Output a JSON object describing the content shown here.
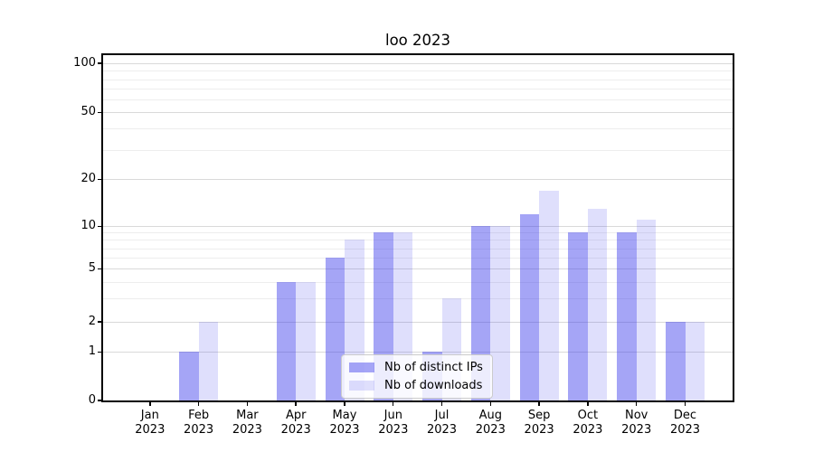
{
  "chart_data": {
    "type": "bar",
    "title": "loo 2023",
    "categories": [
      "Jan 2023",
      "Feb 2023",
      "Mar 2023",
      "Apr 2023",
      "May 2023",
      "Jun 2023",
      "Jul 2023",
      "Aug 2023",
      "Sep 2023",
      "Oct 2023",
      "Nov 2023",
      "Dec 2023"
    ],
    "series": [
      {
        "name": "Nb of distinct IPs",
        "values": [
          0,
          1,
          0,
          4,
          6,
          9,
          1,
          10,
          12,
          9,
          9,
          2
        ],
        "color": "rgba(55,55,235,0.45)",
        "approx_hex": "#a5a5f6"
      },
      {
        "name": "Nb of downloads",
        "values": [
          0,
          2,
          0,
          4,
          8,
          9,
          3,
          10,
          17,
          13,
          11,
          2
        ],
        "color": "rgba(55,55,235,0.16)",
        "approx_hex": "#dfdffc"
      }
    ],
    "xlabel": "",
    "ylabel": "",
    "yscale": "symlog",
    "ylim": [
      0,
      114
    ],
    "yticks": [
      0,
      1,
      2,
      5,
      10,
      20,
      50,
      100
    ],
    "y_tick_labels": [
      "0",
      "1",
      "2",
      "5",
      "10",
      "20",
      "50",
      "100"
    ],
    "minor_yticks": [
      3,
      4,
      6,
      7,
      8,
      9,
      30,
      40,
      60,
      70,
      80,
      90
    ],
    "grid": true,
    "legend_position": "lower center",
    "colors": {
      "major_gridline": "#d9d9d9",
      "minor_gridline": "#ededed",
      "axis": "#000000",
      "background": "#ffffff"
    }
  }
}
